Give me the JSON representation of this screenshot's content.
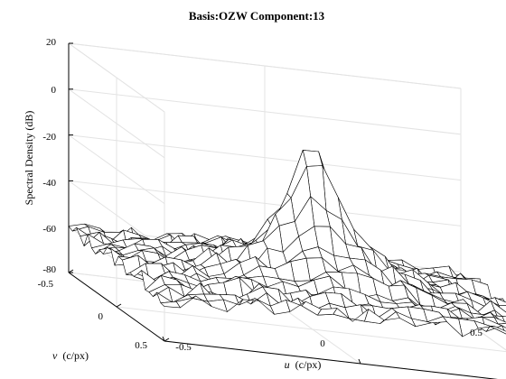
{
  "chart_data": {
    "type": "surface",
    "title": "Basis:OZW Component:13",
    "zlabel": "Spectral Density (dB)",
    "xlabel_var": "u",
    "xlabel_unit": "(c/px)",
    "ylabel_var": "v",
    "ylabel_unit": "(c/px)",
    "xlim": [
      -0.5,
      0.5
    ],
    "ylim": [
      -0.5,
      0.5
    ],
    "zlim": [
      -80,
      20
    ],
    "x_ticks": [
      "-0.5",
      "0",
      "0.5"
    ],
    "y_ticks": [
      "-0.5",
      "0",
      "0.5"
    ],
    "z_ticks": [
      "20",
      "0",
      "-20",
      "-40",
      "-60",
      "-80"
    ],
    "grid": true,
    "peak": {
      "u": 0,
      "v": 0,
      "value": 1
    },
    "surface_profile": {
      "description_of_values": "approximate spectral density (dB) on a regular u,v grid",
      "grid_size": 25,
      "baseline_dB": -58,
      "peak_dB": 1,
      "noise_dB": 4
    }
  }
}
